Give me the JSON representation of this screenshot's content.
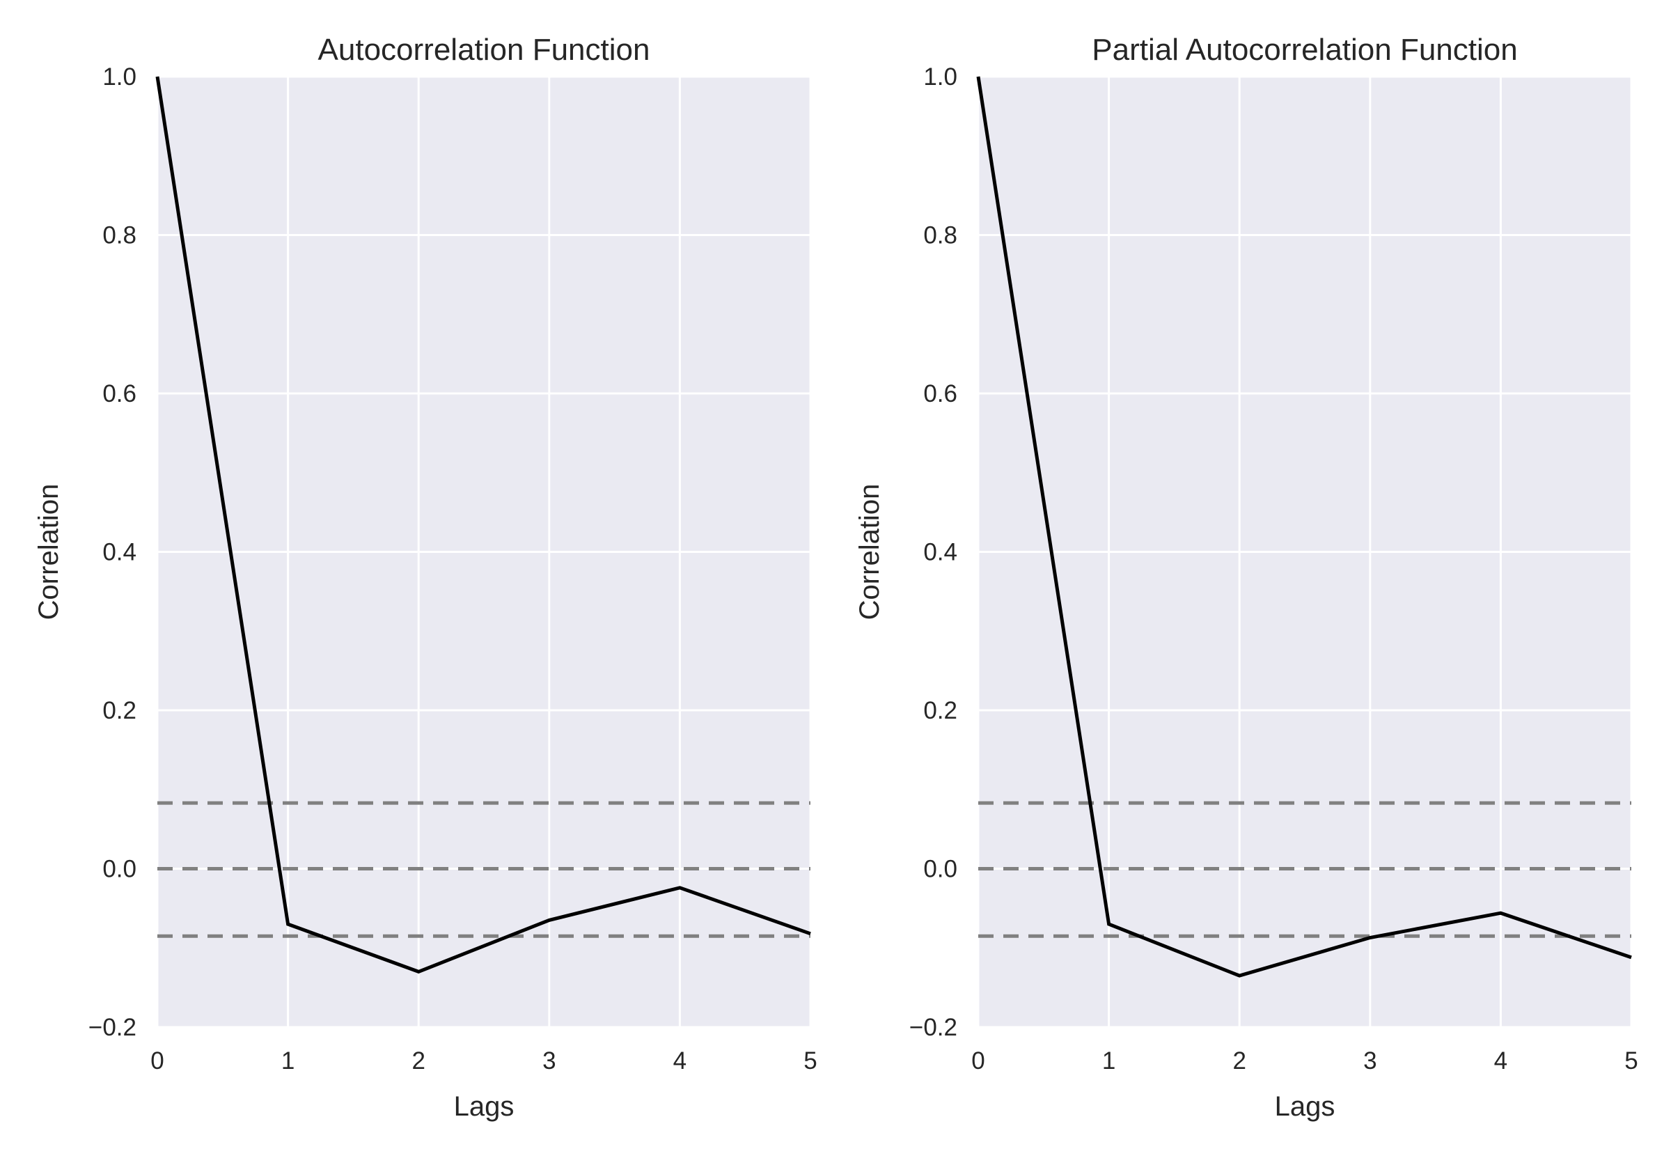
{
  "chart_data": [
    {
      "type": "line",
      "title": "Autocorrelation Function",
      "xlabel": "Lags",
      "ylabel": "Correlation",
      "xlim": [
        0,
        5
      ],
      "ylim": [
        -0.2,
        1.0
      ],
      "xticks": [
        0,
        1,
        2,
        3,
        4,
        5
      ],
      "yticks": [
        -0.2,
        0.0,
        0.2,
        0.4,
        0.6,
        0.8,
        1.0
      ],
      "xtick_labels": [
        "0",
        "1",
        "2",
        "3",
        "4",
        "5"
      ],
      "ytick_labels": [
        "−0.2",
        "0.0",
        "0.2",
        "0.4",
        "0.6",
        "0.8",
        "1.0"
      ],
      "grid": true,
      "series": [
        {
          "x": [
            0,
            1,
            2,
            3,
            4,
            5
          ],
          "values": [
            1.0,
            -0.07,
            -0.13,
            -0.065,
            -0.024,
            -0.082
          ],
          "color": "#000000"
        }
      ],
      "reference_lines": [
        {
          "y": 0.083,
          "style": "dashed",
          "color": "#808080"
        },
        {
          "y": 0.0,
          "style": "dashed",
          "color": "#808080"
        },
        {
          "y": -0.085,
          "style": "dashed",
          "color": "#808080"
        }
      ]
    },
    {
      "type": "line",
      "title": "Partial Autocorrelation Function",
      "xlabel": "Lags",
      "ylabel": "Correlation",
      "xlim": [
        0,
        5
      ],
      "ylim": [
        -0.2,
        1.0
      ],
      "xticks": [
        0,
        1,
        2,
        3,
        4,
        5
      ],
      "yticks": [
        -0.2,
        0.0,
        0.2,
        0.4,
        0.6,
        0.8,
        1.0
      ],
      "xtick_labels": [
        "0",
        "1",
        "2",
        "3",
        "4",
        "5"
      ],
      "ytick_labels": [
        "−0.2",
        "0.0",
        "0.2",
        "0.4",
        "0.6",
        "0.8",
        "1.0"
      ],
      "grid": true,
      "series": [
        {
          "x": [
            0,
            1,
            2,
            3,
            4,
            5
          ],
          "values": [
            1.0,
            -0.07,
            -0.135,
            -0.087,
            -0.056,
            -0.112
          ],
          "color": "#000000"
        }
      ],
      "reference_lines": [
        {
          "y": 0.083,
          "style": "dashed",
          "color": "#808080"
        },
        {
          "y": 0.0,
          "style": "dashed",
          "color": "#808080"
        },
        {
          "y": -0.085,
          "style": "dashed",
          "color": "#808080"
        }
      ]
    }
  ]
}
